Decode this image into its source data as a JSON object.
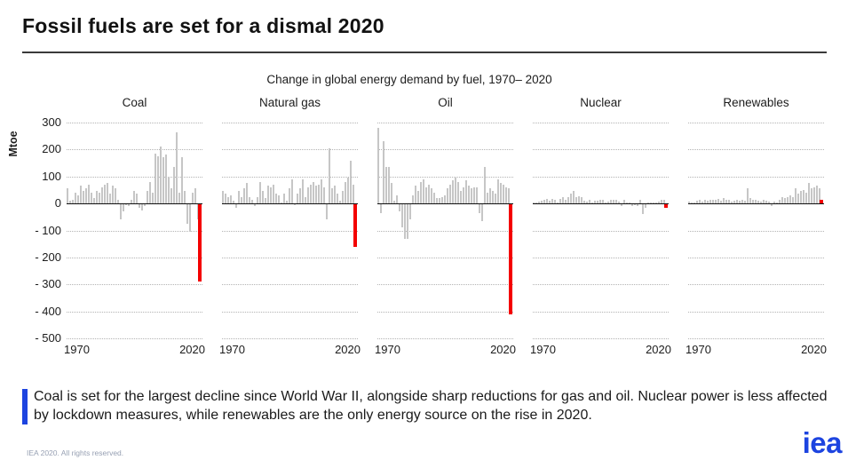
{
  "header": {
    "title": "Fossil fuels are set for a dismal 2020"
  },
  "chart_data": {
    "type": "bar",
    "title": "Change in global energy demand by fuel, 1970– 2020",
    "ylabel": "Mtoe",
    "ylim": [
      -500,
      300
    ],
    "yticks": [
      300,
      200,
      100,
      0,
      -100,
      -200,
      -300,
      -400,
      -500
    ],
    "ytick_labels": [
      "300",
      "200",
      "100",
      "0",
      "- 100",
      "- 200",
      "- 300",
      "- 400",
      "- 500"
    ],
    "x_range": [
      1970,
      2020
    ],
    "xtick_labels": [
      "1970",
      "2020"
    ],
    "grid": "dotted-horizontal",
    "legend": "none",
    "highlight_year": 2020,
    "colors": {
      "bar": "#c6c6c6",
      "highlight": "#f40000"
    },
    "panels": [
      {
        "label": "Coal",
        "values": [
          55,
          10,
          15,
          40,
          30,
          65,
          45,
          55,
          70,
          40,
          20,
          45,
          40,
          60,
          70,
          75,
          35,
          65,
          55,
          15,
          -60,
          -30,
          -5,
          -10,
          15,
          45,
          35,
          -15,
          -25,
          -10,
          45,
          80,
          40,
          185,
          175,
          210,
          170,
          180,
          95,
          55,
          135,
          265,
          40,
          170,
          45,
          -75,
          -105,
          40,
          55,
          -60,
          -290
        ]
      },
      {
        "label": "Natural gas",
        "values": [
          45,
          35,
          25,
          30,
          10,
          -15,
          45,
          25,
          55,
          75,
          25,
          15,
          -10,
          25,
          80,
          45,
          20,
          65,
          60,
          70,
          35,
          30,
          5,
          35,
          10,
          55,
          90,
          -5,
          35,
          55,
          90,
          25,
          60,
          70,
          80,
          65,
          70,
          90,
          60,
          -60,
          205,
          55,
          65,
          35,
          10,
          45,
          80,
          95,
          160,
          70,
          -160
        ]
      },
      {
        "label": "Oil",
        "values": [
          280,
          -35,
          230,
          135,
          135,
          75,
          10,
          30,
          -30,
          -90,
          -130,
          -130,
          -60,
          30,
          65,
          45,
          80,
          90,
          60,
          70,
          55,
          40,
          20,
          20,
          25,
          30,
          55,
          70,
          85,
          95,
          80,
          45,
          60,
          85,
          65,
          55,
          60,
          60,
          -35,
          -65,
          135,
          40,
          55,
          45,
          35,
          90,
          75,
          70,
          60,
          55,
          -410
        ]
      },
      {
        "label": "Nuclear",
        "values": [
          3,
          5,
          8,
          10,
          15,
          18,
          10,
          18,
          15,
          5,
          18,
          22,
          15,
          25,
          35,
          45,
          25,
          28,
          25,
          10,
          8,
          12,
          5,
          10,
          10,
          15,
          12,
          3,
          8,
          12,
          15,
          12,
          8,
          -8,
          15,
          5,
          3,
          -10,
          -5,
          -8,
          15,
          -40,
          -15,
          3,
          5,
          3,
          5,
          8,
          12,
          15,
          -15
        ]
      },
      {
        "label": "Renewables",
        "values": [
          8,
          5,
          3,
          10,
          12,
          8,
          15,
          10,
          12,
          15,
          12,
          18,
          10,
          20,
          15,
          12,
          8,
          10,
          15,
          10,
          12,
          10,
          55,
          20,
          15,
          12,
          10,
          8,
          12,
          10,
          8,
          -10,
          8,
          5,
          15,
          25,
          20,
          25,
          30,
          25,
          55,
          35,
          45,
          50,
          40,
          75,
          55,
          60,
          65,
          55,
          15
        ]
      }
    ]
  },
  "caption": {
    "text": "Coal is set for the largest decline since World War II, alongside sharp reductions for gas and oil. Nuclear power is less affected by lockdown measures, while renewables are the only energy source on the rise in 2020.",
    "accent_color": "#1d44e0"
  },
  "footer": {
    "copyright": "IEA 2020. All rights reserved.",
    "logo_text": "iea",
    "logo_color": "#1d44e0"
  }
}
